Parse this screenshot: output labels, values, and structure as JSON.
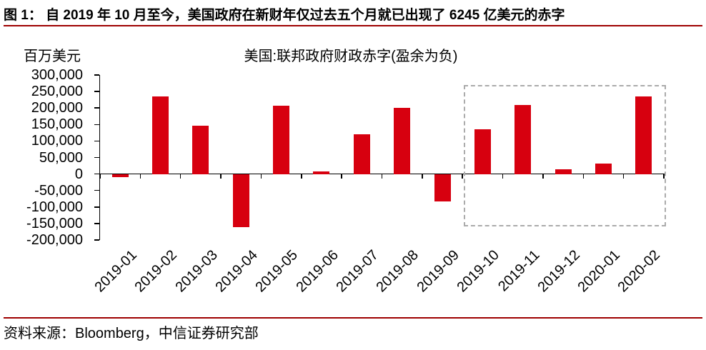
{
  "page": {
    "header_title": "图 1：  自 2019 年 10 月至今，美国政府在新财年仅过去五个月就已出现了 6245 亿美元的赤字",
    "source_note": "资料来源：Bloomberg，中信证券研究部"
  },
  "colors": {
    "accent_rule": "#9e0000",
    "bar": "#d7000f",
    "axis": "#000000",
    "highlight_border": "#ababab"
  },
  "chart_data": {
    "type": "bar",
    "title": "美国:联邦政府财政赤字(盈余为负)",
    "unit_label": "百万美元",
    "ylabel": "百万美元",
    "xlabel": "",
    "categories": [
      "2019-01",
      "2019-02",
      "2019-03",
      "2019-04",
      "2019-05",
      "2019-06",
      "2019-07",
      "2019-08",
      "2019-09",
      "2019-10",
      "2019-11",
      "2019-12",
      "2020-01",
      "2020-02"
    ],
    "values": [
      -8700,
      234000,
      147000,
      -160300,
      207800,
      8500,
      119700,
      200300,
      -82800,
      134500,
      208800,
      13300,
      32600,
      235300
    ],
    "ylim": [
      -200000,
      300000
    ],
    "ytick_step": 50000,
    "grid": false,
    "legend": null,
    "bar_color": "#d7000f",
    "highlight_box": {
      "from": "2019-10",
      "to": "2020-02",
      "style": "dashed",
      "border_color": "#ababab"
    }
  }
}
